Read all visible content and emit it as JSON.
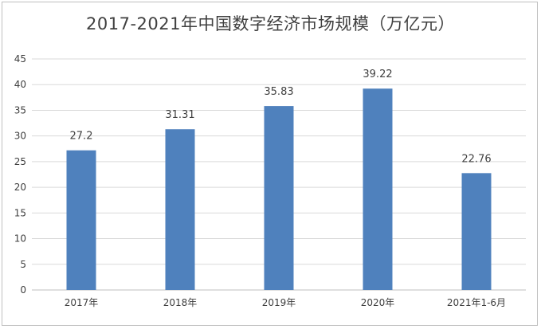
{
  "chart_data": {
    "type": "bar",
    "title": "2017-2021年中国数字经济市场规模（万亿元）",
    "categories": [
      "2017年",
      "2018年",
      "2019年",
      "2020年",
      "2021年1-6月"
    ],
    "values": [
      27.2,
      31.31,
      35.83,
      39.22,
      22.76
    ],
    "value_labels": [
      "27.2",
      "31.31",
      "35.83",
      "39.22",
      "22.76"
    ],
    "yticks": [
      "0",
      "5",
      "10",
      "15",
      "20",
      "25",
      "30",
      "35",
      "40",
      "45"
    ],
    "ylim": [
      0,
      45
    ],
    "grid": true,
    "legend": "none",
    "bar_color": "#4f81bd",
    "grid_color": "#d9d9d9",
    "text_color": "#404040"
  }
}
